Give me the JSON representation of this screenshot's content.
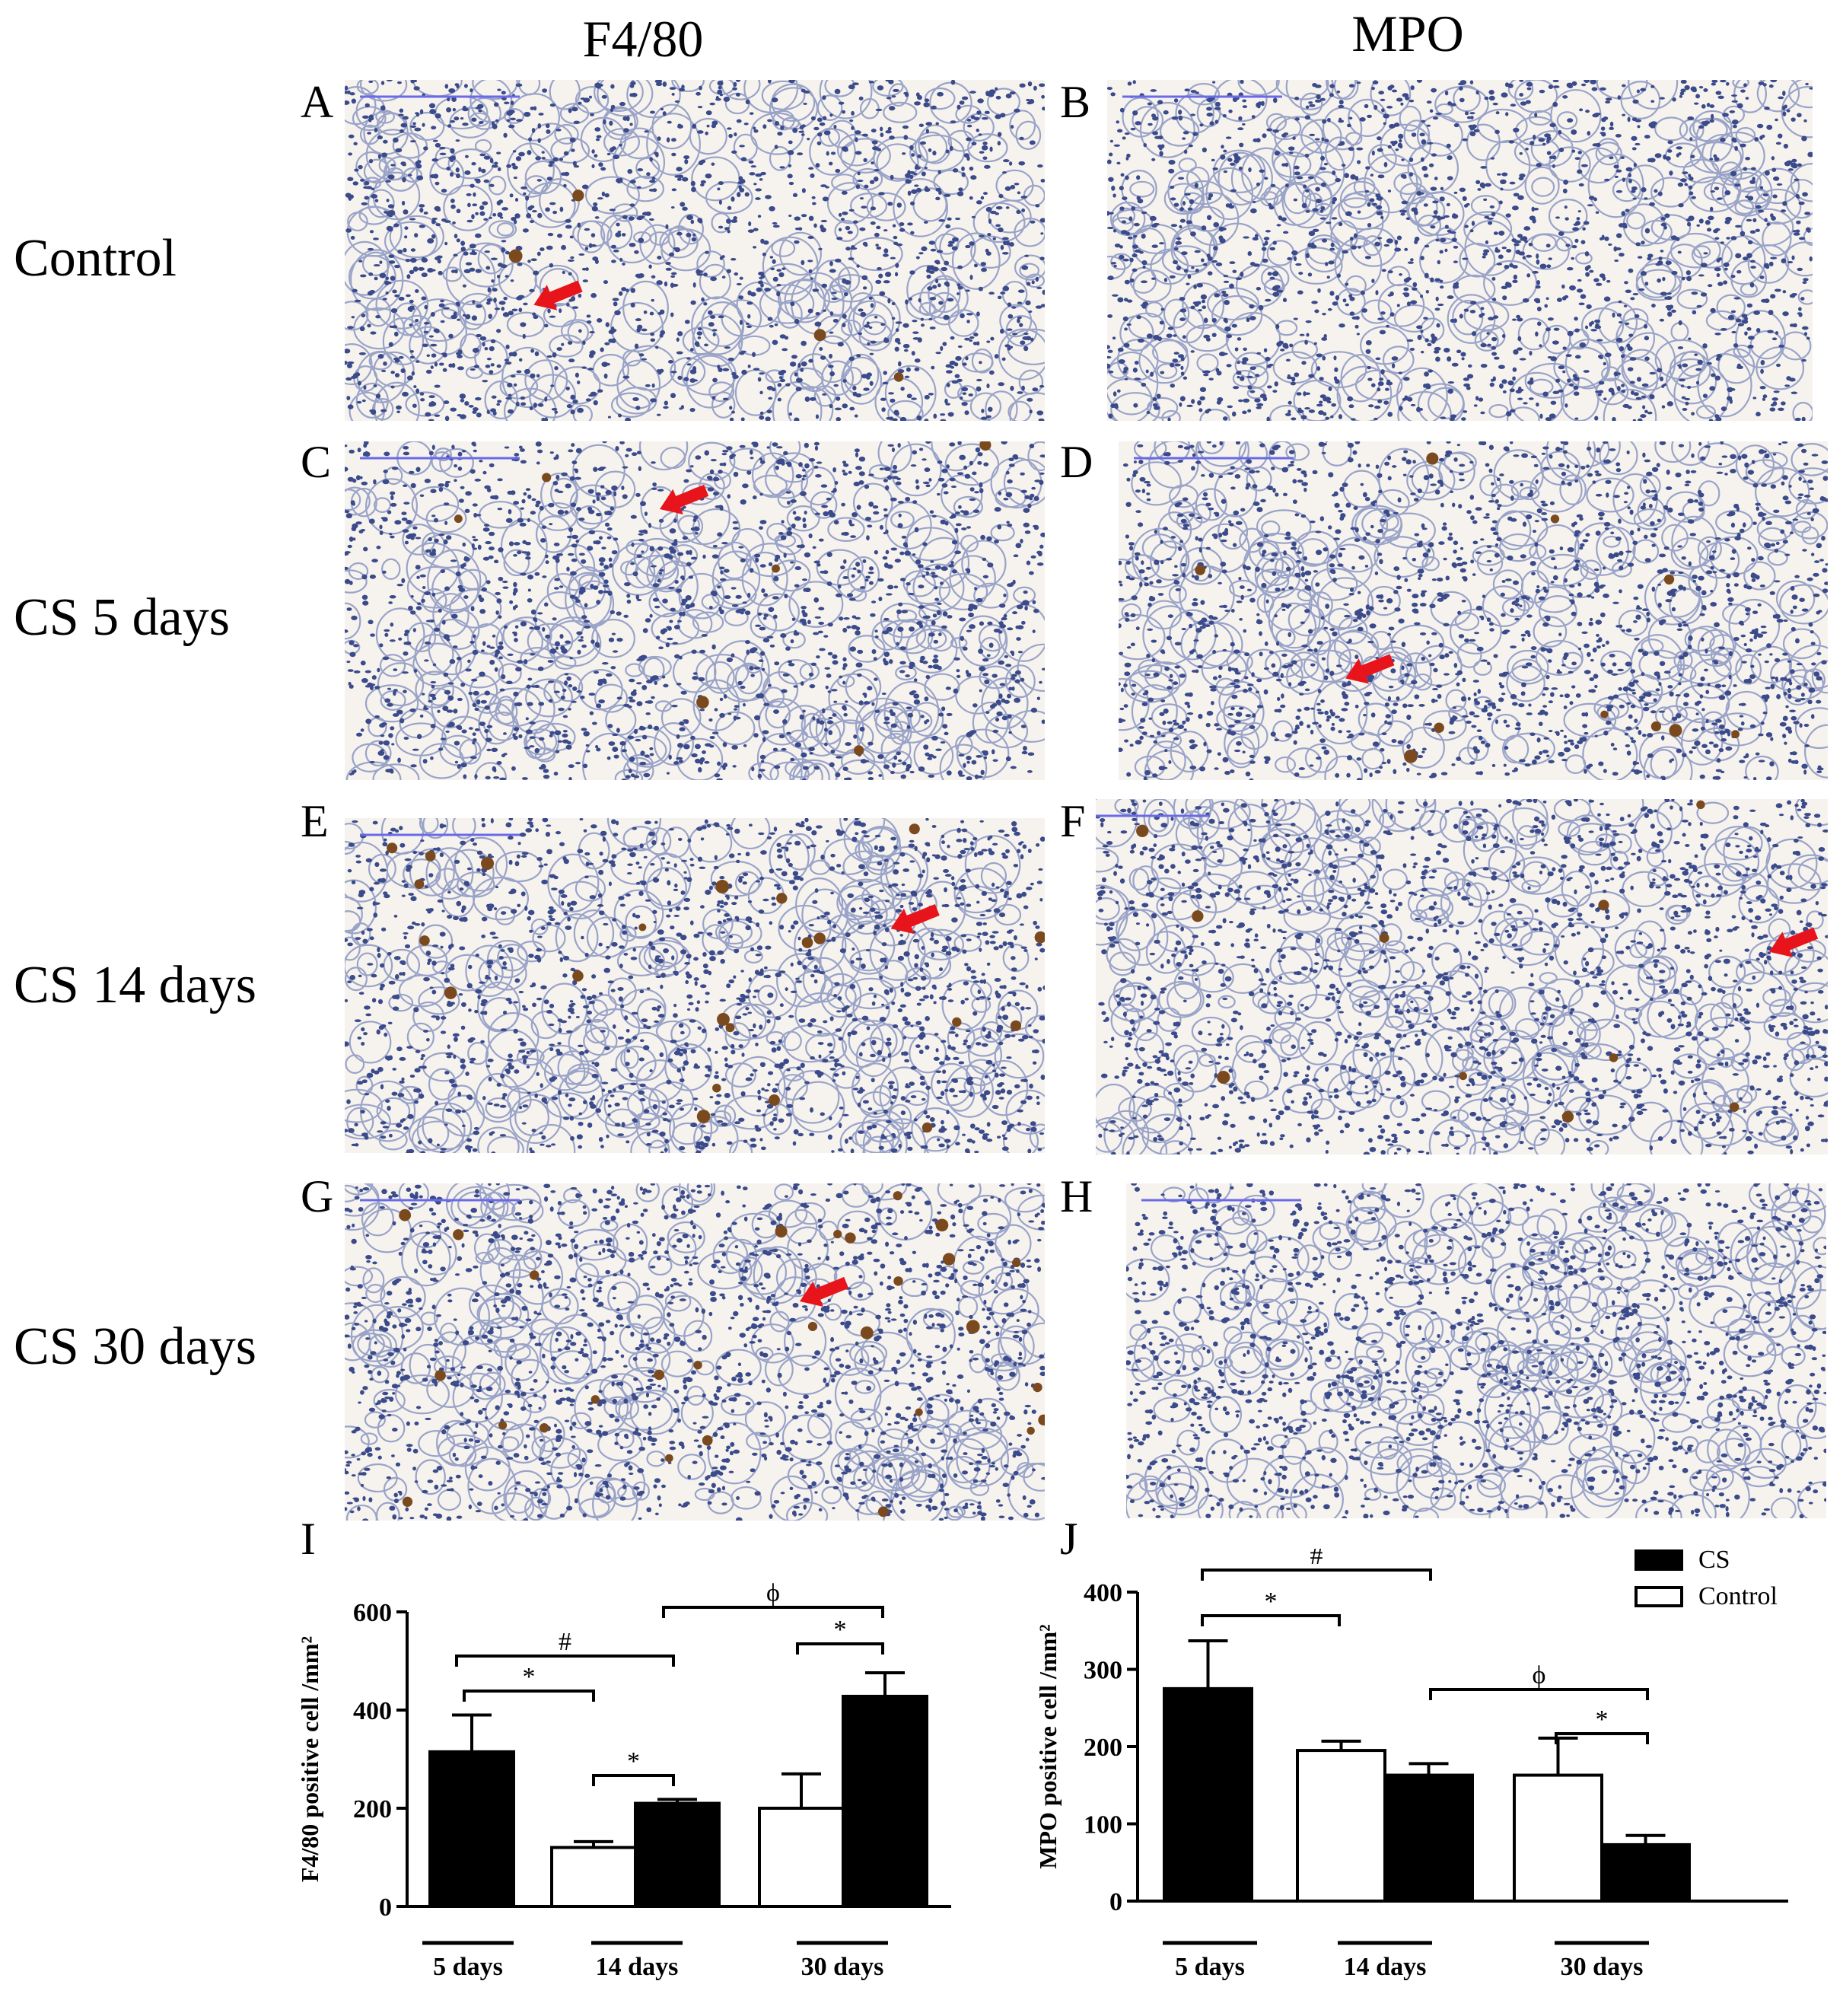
{
  "figure": {
    "column_headers": [
      "F4/80",
      "MPO"
    ],
    "row_labels": [
      "Control",
      "CS 5 days",
      "CS 14 days",
      "CS 30 days"
    ],
    "panels": [
      {
        "letter": "A",
        "stain": "F4/80",
        "group": "Control",
        "arrow": true
      },
      {
        "letter": "B",
        "stain": "MPO",
        "group": "Control",
        "arrow": false
      },
      {
        "letter": "C",
        "stain": "F4/80",
        "group": "CS 5 days",
        "arrow": true
      },
      {
        "letter": "D",
        "stain": "MPO",
        "group": "CS 5 days",
        "arrow": true
      },
      {
        "letter": "E",
        "stain": "F4/80",
        "group": "CS 14 days",
        "arrow": true
      },
      {
        "letter": "F",
        "stain": "MPO",
        "group": "CS 14 days",
        "arrow": true
      },
      {
        "letter": "G",
        "stain": "F4/80",
        "group": "CS 30 days",
        "arrow": true
      },
      {
        "letter": "H",
        "stain": "MPO",
        "group": "CS 30 days",
        "arrow": false
      }
    ],
    "chart_letters": [
      "I",
      "J"
    ],
    "colors": {
      "arrow": "#e8141c",
      "tissue": "#3a4a8a",
      "scale_bar": "#6a6ae8",
      "cs_bar": "#000000",
      "control_bar": "#ffffff"
    }
  },
  "chart_data": [
    {
      "type": "bar",
      "ylabel": "F4/80 positive cell /mm²",
      "ylim": [
        0,
        600
      ],
      "yticks": [
        "0",
        "200",
        "400",
        "600"
      ],
      "categories": [
        "5 days",
        "14 days",
        "30 days"
      ],
      "series": [
        {
          "name": "Control",
          "values": [
            null,
            120,
            200
          ],
          "errors": [
            null,
            12,
            70
          ]
        },
        {
          "name": "CS",
          "values": [
            315,
            210,
            428
          ],
          "errors": [
            75,
            8,
            48
          ]
        }
      ],
      "annotations": [
        {
          "symbol": "*"
        },
        {
          "symbol": "#"
        },
        {
          "symbol": "*"
        },
        {
          "symbol": "ϕ"
        },
        {
          "symbol": "*"
        }
      ]
    },
    {
      "type": "bar",
      "ylabel": "MPO positive cell /mm²",
      "ylim": [
        0,
        400
      ],
      "yticks": [
        "0",
        "100",
        "200",
        "300",
        "400"
      ],
      "categories": [
        "5 days",
        "14 days",
        "30 days"
      ],
      "series": [
        {
          "name": "CS",
          "values": [
            275,
            163,
            73
          ],
          "errors": [
            62,
            15,
            12
          ]
        },
        {
          "name": "Control",
          "values": [
            null,
            195,
            163
          ],
          "errors": [
            null,
            12,
            48
          ]
        }
      ],
      "legend": [
        "CS",
        "Control"
      ],
      "annotations": [
        {
          "symbol": "#"
        },
        {
          "symbol": "*"
        },
        {
          "symbol": "ϕ"
        },
        {
          "symbol": "*"
        }
      ]
    }
  ]
}
